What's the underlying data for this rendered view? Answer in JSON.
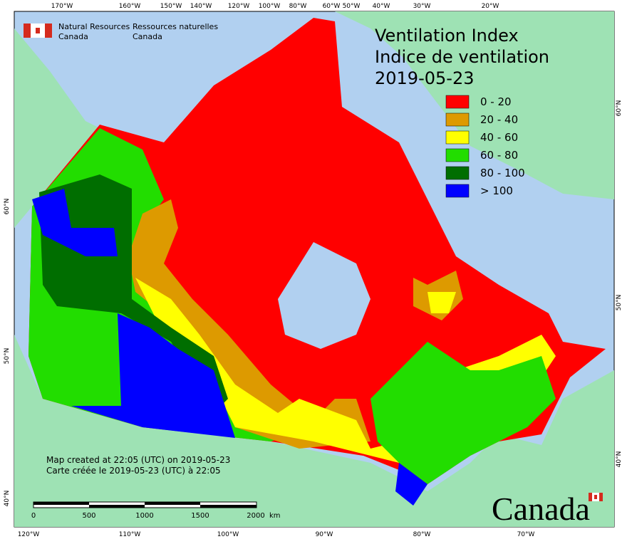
{
  "header": {
    "agency_en": "Natural Resources",
    "agency_en_2": "Canada",
    "agency_fr": "Ressources naturelles",
    "agency_fr_2": "Canada"
  },
  "title": {
    "line1": "Ventilation Index",
    "line2": "Indice de ventilation",
    "date": "2019-05-23"
  },
  "legend": [
    {
      "label": "0 - 20",
      "color": "#ff0000"
    },
    {
      "label": "20 - 40",
      "color": "#dd9a00"
    },
    {
      "label": "40 - 60",
      "color": "#ffff00"
    },
    {
      "label": "60 - 80",
      "color": "#22dd00"
    },
    {
      "label": "80 - 100",
      "color": "#006e00"
    },
    {
      "label": "> 100",
      "color": "#0000ff"
    }
  ],
  "top_labels": [
    "170°W",
    "160°W",
    "150°W",
    "140°W",
    "120°W",
    "100°W",
    "80°W",
    "60°W",
    "50°W",
    "40°W",
    "30°W",
    "20°W"
  ],
  "bottom_labels": [
    "120°W",
    "110°W",
    "100°W",
    "90°W",
    "80°W",
    "70°W"
  ],
  "left_labels": [
    "60°N",
    "50°N",
    "40°N"
  ],
  "right_labels": [
    "60°N",
    "50°N",
    "40°N"
  ],
  "scale": {
    "ticks": [
      "0",
      "500",
      "1000",
      "1500",
      "2000"
    ],
    "unit": "km"
  },
  "footer": {
    "line1": "Map created at 22:05 (UTC) on 2019-05-23",
    "line2": "Carte créée le 2019-05-23 (UTC) à 22:05"
  },
  "wordmark": "Canada"
}
